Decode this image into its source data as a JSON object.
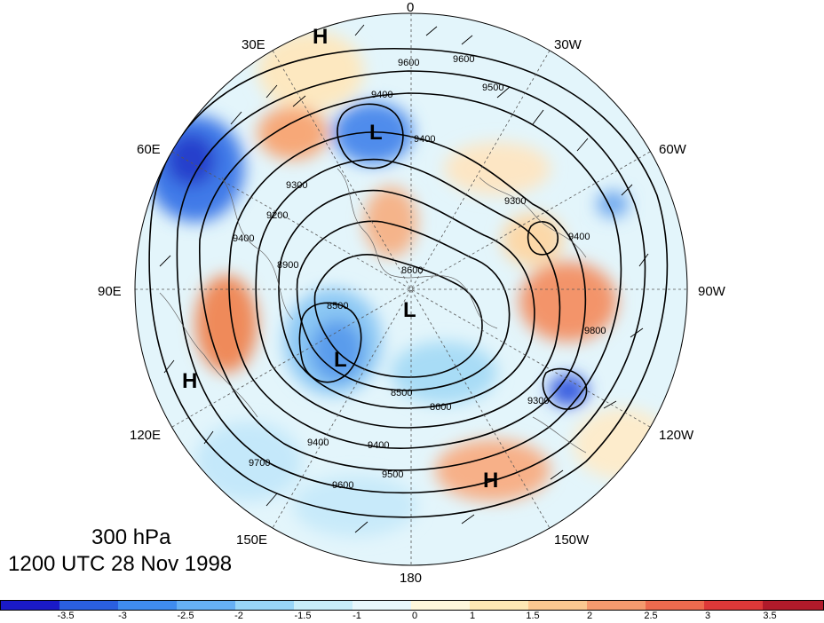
{
  "title": {
    "level": "300 hPa",
    "time": "1200 UTC 28 Nov 1998"
  },
  "longitude_labels": [
    "0",
    "30W",
    "60W",
    "90W",
    "120W",
    "150W",
    "180",
    "150E",
    "120E",
    "90E",
    "60E",
    "30E"
  ],
  "pressure_centers": [
    "H",
    "L",
    "L",
    "L",
    "H",
    "H"
  ],
  "contour_labels": [
    "9600",
    "9600",
    "9500",
    "9400",
    "9400",
    "9300",
    "9300",
    "9200",
    "9400",
    "8900",
    "8600",
    "8500",
    "8500",
    "8600",
    "9300",
    "9400",
    "9500",
    "9600",
    "9700",
    "9400",
    "9800",
    "9400"
  ],
  "colorbar": {
    "ticks": [
      "-3.5",
      "-3",
      "-2.5",
      "-2",
      "-1.5",
      "-1",
      "0",
      "1",
      "1.5",
      "2",
      "2.5",
      "3",
      "3.5"
    ],
    "colors": [
      "#1a1ac8",
      "#2a5fe0",
      "#3f8cf0",
      "#66b0f5",
      "#98d6f8",
      "#c8eefa",
      "#e8f8fc",
      "#fff8dc",
      "#fde8b4",
      "#fbc890",
      "#f59a6e",
      "#ee6a4e",
      "#dd3838",
      "#b01a2a"
    ]
  },
  "colors": {
    "contour": "#000000",
    "grid": "#555555"
  }
}
